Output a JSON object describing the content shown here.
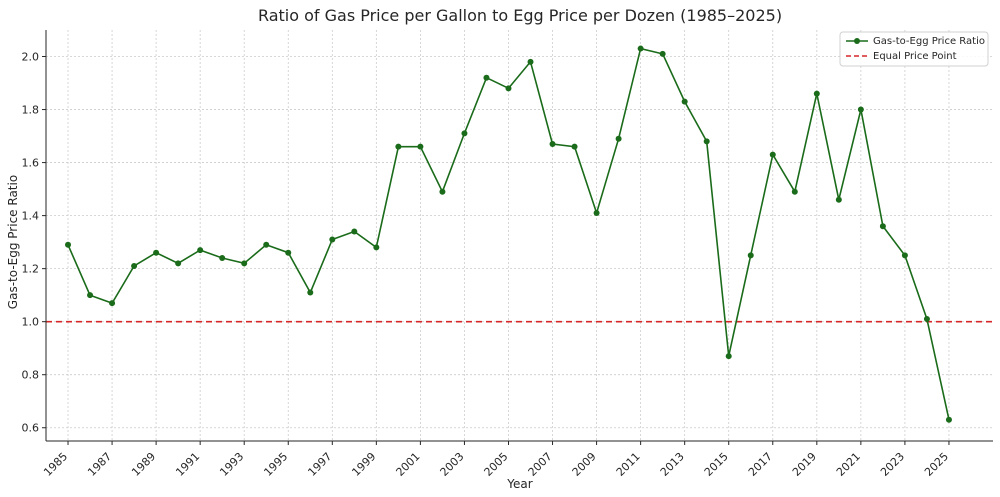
{
  "chart_data": {
    "type": "line",
    "title": "Ratio of Gas Price per Gallon to Egg Price per Dozen (1985–2025)",
    "xlabel": "Year",
    "ylabel": "Gas-to-Egg Price Ratio",
    "xlim": [
      1984,
      2027
    ],
    "ylim": [
      0.55,
      2.1
    ],
    "x_ticks": [
      "1985",
      "1987",
      "1989",
      "1991",
      "1993",
      "1995",
      "1997",
      "1999",
      "2001",
      "2003",
      "2005",
      "2007",
      "2009",
      "2011",
      "2013",
      "2015",
      "2017",
      "2019",
      "2021",
      "2023",
      "2025"
    ],
    "y_ticks": [
      "0.6",
      "0.8",
      "1.0",
      "1.2",
      "1.4",
      "1.6",
      "1.8",
      "2.0"
    ],
    "grid": true,
    "legend_position": "top-right",
    "series": [
      {
        "name": "Gas-to-Egg Price Ratio",
        "color": "#1a6b1a",
        "style": "solid-with-markers",
        "x": [
          1985,
          1986,
          1987,
          1988,
          1989,
          1990,
          1991,
          1992,
          1993,
          1994,
          1995,
          1996,
          1997,
          1998,
          1999,
          2000,
          2001,
          2002,
          2003,
          2004,
          2005,
          2006,
          2007,
          2008,
          2009,
          2010,
          2011,
          2012,
          2013,
          2014,
          2015,
          2016,
          2017,
          2018,
          2019,
          2020,
          2021,
          2022,
          2023,
          2024,
          2025
        ],
        "values": [
          1.29,
          1.1,
          1.07,
          1.21,
          1.26,
          1.22,
          1.27,
          1.24,
          1.22,
          1.29,
          1.26,
          1.11,
          1.31,
          1.34,
          1.28,
          1.66,
          1.66,
          1.49,
          1.71,
          1.92,
          1.88,
          1.98,
          1.67,
          1.66,
          1.41,
          1.69,
          2.03,
          2.01,
          1.83,
          1.68,
          0.87,
          1.25,
          1.63,
          1.49,
          1.86,
          1.46,
          1.8,
          1.36,
          1.25,
          1.01,
          0.63
        ]
      },
      {
        "name": "Equal Price Point",
        "color": "#d62728",
        "style": "dashed-horizontal",
        "y": 1.0
      }
    ]
  }
}
